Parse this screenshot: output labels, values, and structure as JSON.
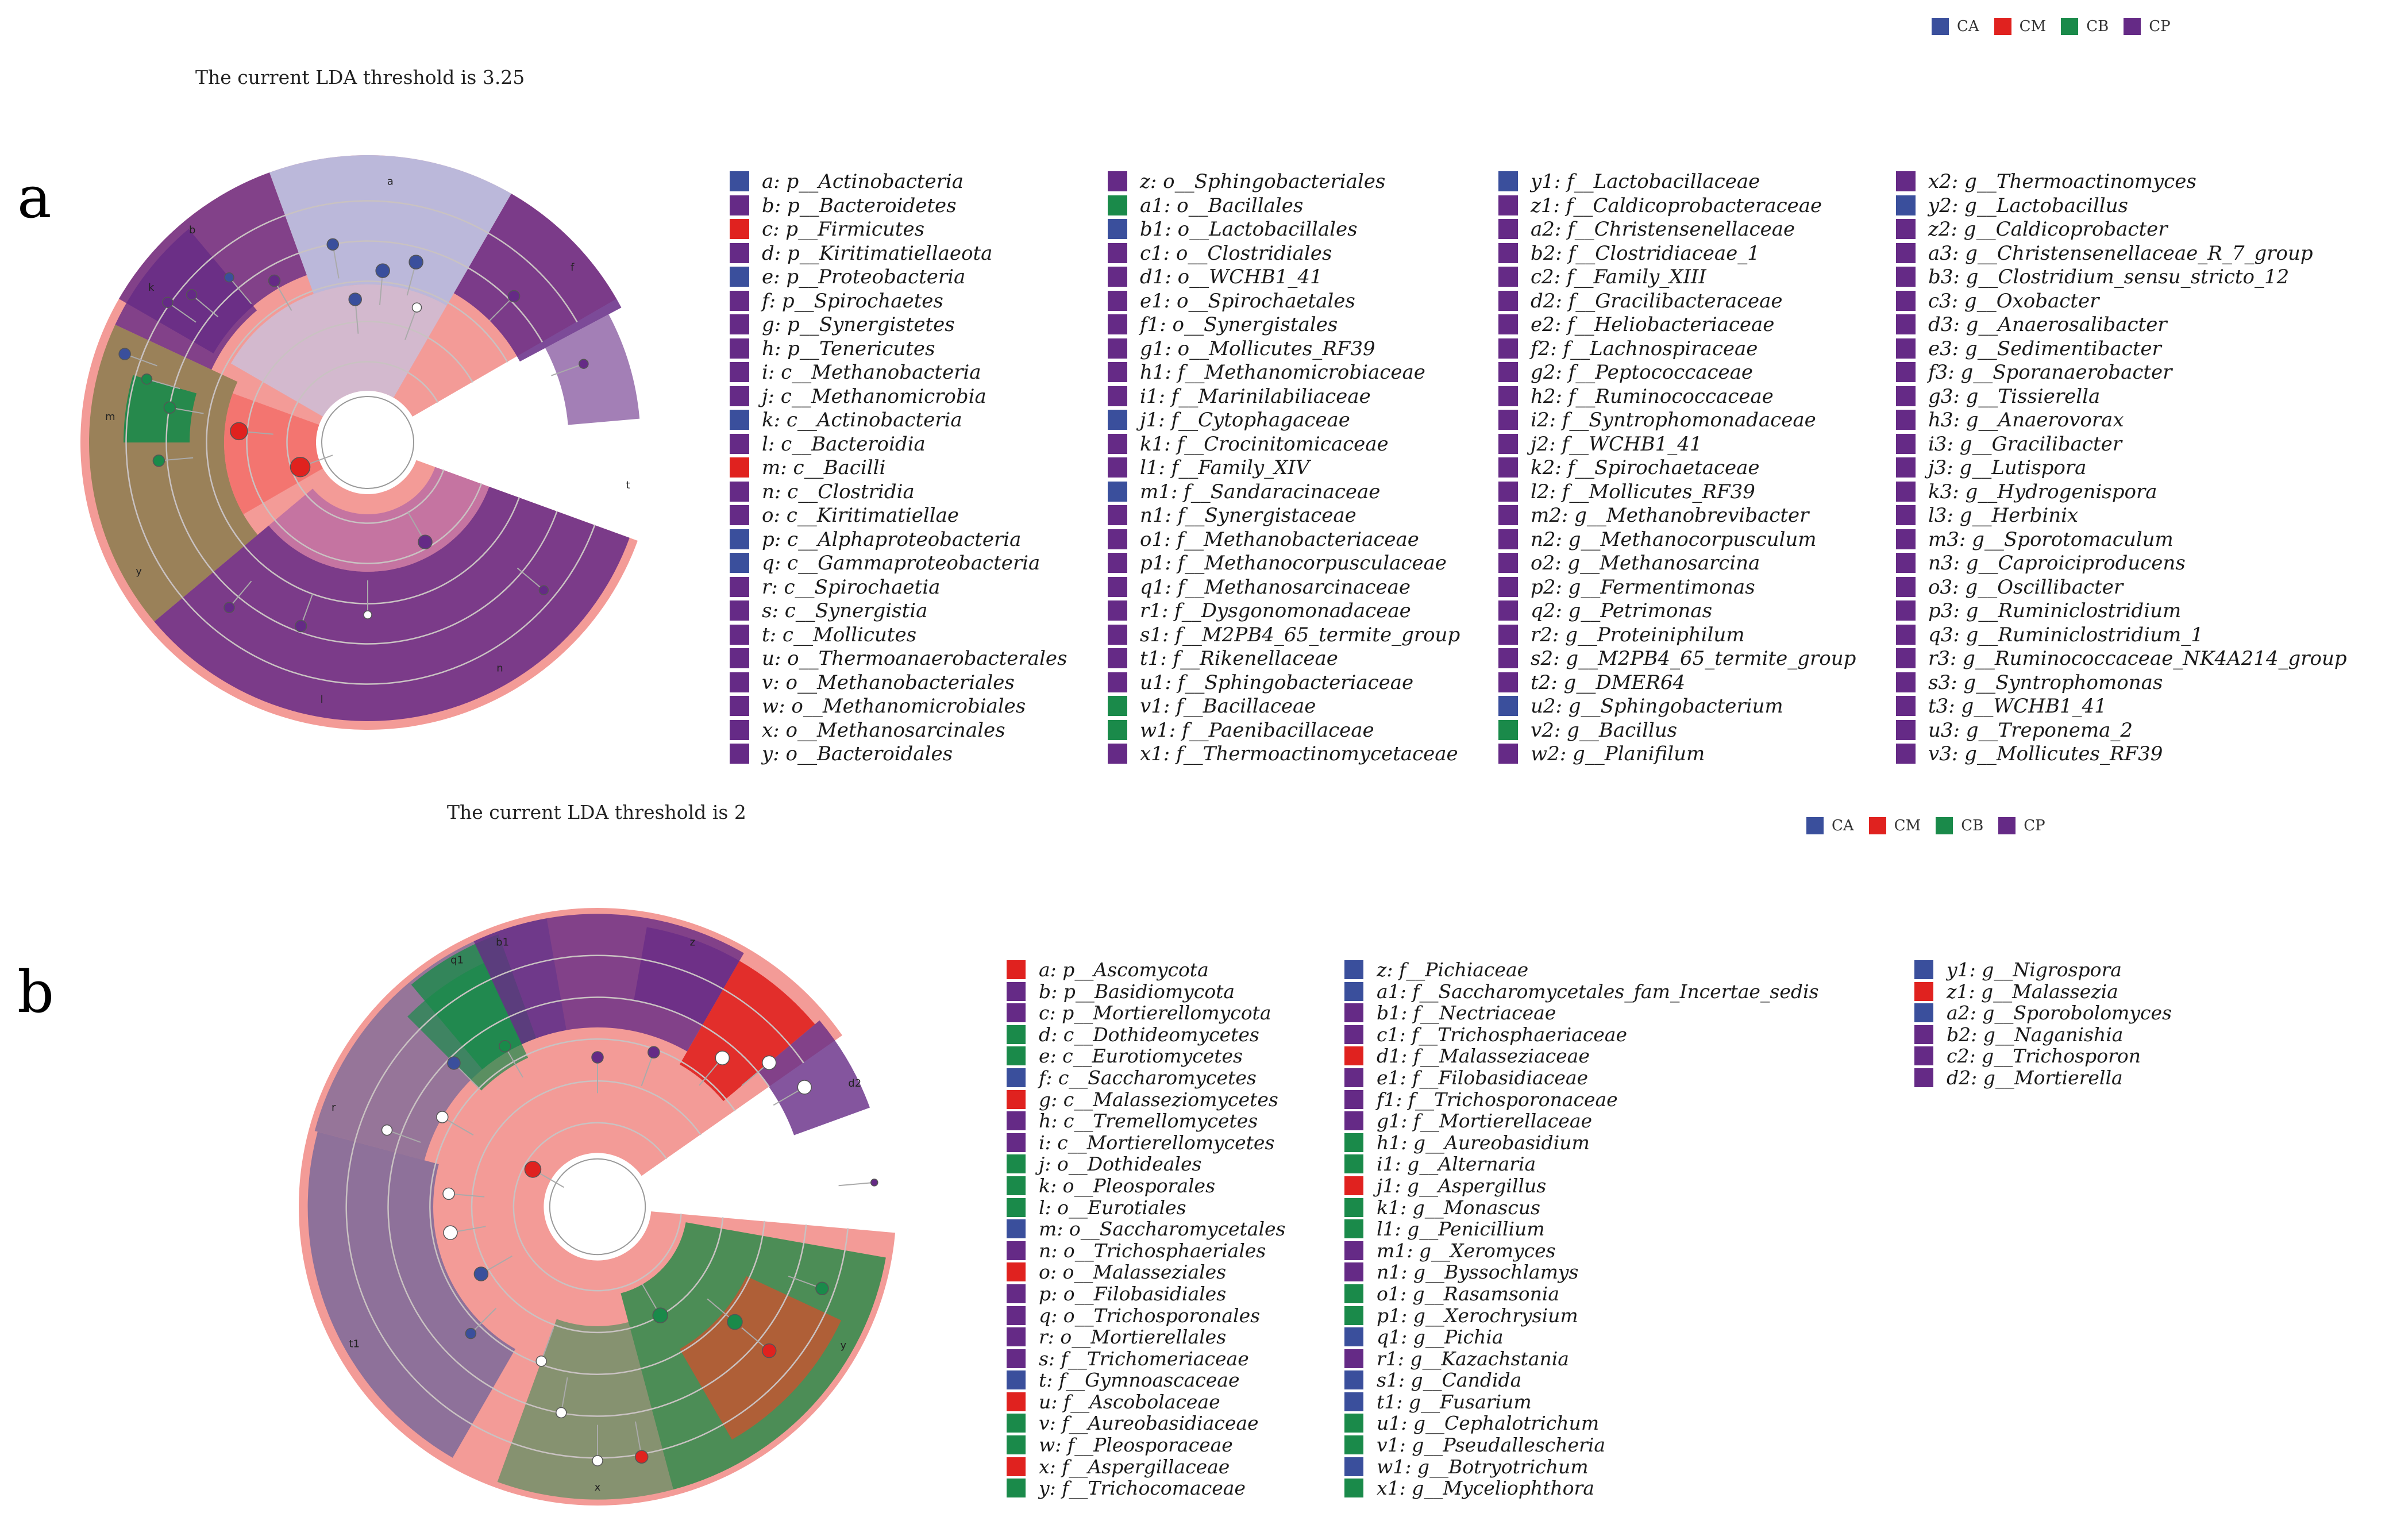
{
  "colors": {
    "CA": "#3a4f9c",
    "CM": "#e0221f",
    "CB": "#1a8a4a",
    "CP": "#652a86",
    "pink": "#f39b97",
    "light": "#b7b9dd",
    "olive": "#8a7c4e"
  },
  "panel_a": {
    "label": "a",
    "threshold_text": "The current LDA threshold is 3.25",
    "legend": [
      {
        "key": "CA",
        "label": "CA"
      },
      {
        "key": "CM",
        "label": "CM"
      },
      {
        "key": "CB",
        "label": "CB"
      },
      {
        "key": "CP",
        "label": "CP"
      }
    ],
    "columns": [
      [
        {
          "c": "CA",
          "t": "a: p__Actinobacteria"
        },
        {
          "c": "CP",
          "t": "b: p__Bacteroidetes"
        },
        {
          "c": "CM",
          "t": "c: p__Firmicutes"
        },
        {
          "c": "CP",
          "t": "d: p__Kiritimatiellaeota"
        },
        {
          "c": "CA",
          "t": "e: p__Proteobacteria"
        },
        {
          "c": "CP",
          "t": "f: p__Spirochaetes"
        },
        {
          "c": "CP",
          "t": "g: p__Synergistetes"
        },
        {
          "c": "CP",
          "t": "h: p__Tenericutes"
        },
        {
          "c": "CP",
          "t": "i: c__Methanobacteria"
        },
        {
          "c": "CP",
          "t": "j: c__Methanomicrobia"
        },
        {
          "c": "CA",
          "t": "k: c__Actinobacteria"
        },
        {
          "c": "CP",
          "t": "l: c__Bacteroidia"
        },
        {
          "c": "CM",
          "t": "m: c__Bacilli"
        },
        {
          "c": "CP",
          "t": "n: c__Clostridia"
        },
        {
          "c": "CP",
          "t": "o: c__Kiritimatiellae"
        },
        {
          "c": "CA",
          "t": "p: c__Alphaproteobacteria"
        },
        {
          "c": "CA",
          "t": "q: c__Gammaproteobacteria"
        },
        {
          "c": "CP",
          "t": "r: c__Spirochaetia"
        },
        {
          "c": "CP",
          "t": "s: c__Synergistia"
        },
        {
          "c": "CP",
          "t": "t: c__Mollicutes"
        },
        {
          "c": "CP",
          "t": "u: o__Thermoanaerobacterales"
        },
        {
          "c": "CP",
          "t": "v: o__Methanobacteriales"
        },
        {
          "c": "CP",
          "t": "w: o__Methanomicrobiales"
        },
        {
          "c": "CP",
          "t": "x: o__Methanosarcinales"
        },
        {
          "c": "CP",
          "t": "y: o__Bacteroidales"
        }
      ],
      [
        {
          "c": "CP",
          "t": "z: o__Sphingobacteriales"
        },
        {
          "c": "CB",
          "t": "a1: o__Bacillales"
        },
        {
          "c": "CA",
          "t": "b1: o__Lactobacillales"
        },
        {
          "c": "CP",
          "t": "c1: o__Clostridiales"
        },
        {
          "c": "CP",
          "t": "d1: o__WCHB1_41"
        },
        {
          "c": "CP",
          "t": "e1: o__Spirochaetales"
        },
        {
          "c": "CP",
          "t": "f1: o__Synergistales"
        },
        {
          "c": "CP",
          "t": "g1: o__Mollicutes_RF39"
        },
        {
          "c": "CP",
          "t": "h1: f__Methanomicrobiaceae"
        },
        {
          "c": "CP",
          "t": "i1: f__Marinilabiliaceae"
        },
        {
          "c": "CA",
          "t": "j1: f__Cytophagaceae"
        },
        {
          "c": "CP",
          "t": "k1: f__Crocinitomicaceae"
        },
        {
          "c": "CP",
          "t": "l1: f__Family_XIV"
        },
        {
          "c": "CA",
          "t": "m1: f__Sandaracinaceae"
        },
        {
          "c": "CP",
          "t": "n1: f__Synergistaceae"
        },
        {
          "c": "CP",
          "t": "o1: f__Methanobacteriaceae"
        },
        {
          "c": "CP",
          "t": "p1: f__Methanocorpusculaceae"
        },
        {
          "c": "CP",
          "t": "q1: f__Methanosarcinaceae"
        },
        {
          "c": "CP",
          "t": "r1: f__Dysgonomonadaceae"
        },
        {
          "c": "CP",
          "t": "s1: f__M2PB4_65_termite_group"
        },
        {
          "c": "CP",
          "t": "t1: f__Rikenellaceae"
        },
        {
          "c": "CP",
          "t": "u1: f__Sphingobacteriaceae"
        },
        {
          "c": "CB",
          "t": "v1: f__Bacillaceae"
        },
        {
          "c": "CB",
          "t": "w1: f__Paenibacillaceae"
        },
        {
          "c": "CP",
          "t": "x1: f__Thermoactinomycetaceae"
        }
      ],
      [
        {
          "c": "CA",
          "t": "y1: f__Lactobacillaceae"
        },
        {
          "c": "CP",
          "t": "z1: f__Caldicoprobacteraceae"
        },
        {
          "c": "CP",
          "t": "a2: f__Christensenellaceae"
        },
        {
          "c": "CP",
          "t": "b2: f__Clostridiaceae_1"
        },
        {
          "c": "CP",
          "t": "c2: f__Family_XIII"
        },
        {
          "c": "CP",
          "t": "d2: f__Gracilibacteraceae"
        },
        {
          "c": "CP",
          "t": "e2: f__Heliobacteriaceae"
        },
        {
          "c": "CP",
          "t": "f2: f__Lachnospiraceae"
        },
        {
          "c": "CP",
          "t": "g2: f__Peptococcaceae"
        },
        {
          "c": "CP",
          "t": "h2: f__Ruminococcaceae"
        },
        {
          "c": "CP",
          "t": "i2: f__Syntrophomonadaceae"
        },
        {
          "c": "CP",
          "t": "j2: f__WCHB1_41"
        },
        {
          "c": "CP",
          "t": "k2: f__Spirochaetaceae"
        },
        {
          "c": "CP",
          "t": "l2: f__Mollicutes_RF39"
        },
        {
          "c": "CP",
          "t": "m2: g__Methanobrevibacter"
        },
        {
          "c": "CP",
          "t": "n2: g__Methanocorpusculum"
        },
        {
          "c": "CP",
          "t": "o2: g__Methanosarcina"
        },
        {
          "c": "CP",
          "t": "p2: g__Fermentimonas"
        },
        {
          "c": "CP",
          "t": "q2: g__Petrimonas"
        },
        {
          "c": "CP",
          "t": "r2: g__Proteiniphilum"
        },
        {
          "c": "CP",
          "t": "s2: g__M2PB4_65_termite_group"
        },
        {
          "c": "CP",
          "t": "t2: g__DMER64"
        },
        {
          "c": "CA",
          "t": "u2: g__Sphingobacterium"
        },
        {
          "c": "CB",
          "t": "v2: g__Bacillus"
        },
        {
          "c": "CP",
          "t": "w2: g__Planifilum"
        }
      ],
      [
        {
          "c": "CP",
          "t": "x2: g__Thermoactinomyces"
        },
        {
          "c": "CA",
          "t": "y2: g__Lactobacillus"
        },
        {
          "c": "CP",
          "t": "z2: g__Caldicoprobacter"
        },
        {
          "c": "CP",
          "t": "a3: g__Christensenellaceae_R_7_group"
        },
        {
          "c": "CP",
          "t": "b3: g__Clostridium_sensu_stricto_12"
        },
        {
          "c": "CP",
          "t": "c3: g__Oxobacter"
        },
        {
          "c": "CP",
          "t": "d3: g__Anaerosalibacter"
        },
        {
          "c": "CP",
          "t": "e3: g__Sedimentibacter"
        },
        {
          "c": "CP",
          "t": "f3: g__Sporanaerobacter"
        },
        {
          "c": "CP",
          "t": "g3: g__Tissierella"
        },
        {
          "c": "CP",
          "t": "h3: g__Anaerovorax"
        },
        {
          "c": "CP",
          "t": "i3: g__Gracilibacter"
        },
        {
          "c": "CP",
          "t": "j3: g__Lutispora"
        },
        {
          "c": "CP",
          "t": "k3: g__Hydrogenispora"
        },
        {
          "c": "CP",
          "t": "l3: g__Herbinix"
        },
        {
          "c": "CP",
          "t": "m3: g__Sporotomaculum"
        },
        {
          "c": "CP",
          "t": "n3: g__Caproiciproducens"
        },
        {
          "c": "CP",
          "t": "o3: g__Oscillibacter"
        },
        {
          "c": "CP",
          "t": "p3: g__Ruminiclostridium"
        },
        {
          "c": "CP",
          "t": "q3: g__Ruminiclostridium_1"
        },
        {
          "c": "CP",
          "t": "r3: g__Ruminococcaceae_NK4A214_group"
        },
        {
          "c": "CP",
          "t": "s3: g__Syntrophomonas"
        },
        {
          "c": "CP",
          "t": "t3: g__WCHB1_41"
        },
        {
          "c": "CP",
          "t": "u3: g__Treponema_2"
        },
        {
          "c": "CP",
          "t": "v3: g__Mollicutes_RF39"
        }
      ]
    ]
  },
  "panel_b": {
    "label": "b",
    "threshold_text": "The current LDA threshold is 2",
    "legend": [
      {
        "key": "CA",
        "label": "CA"
      },
      {
        "key": "CM",
        "label": "CM"
      },
      {
        "key": "CB",
        "label": "CB"
      },
      {
        "key": "CP",
        "label": "CP"
      }
    ],
    "columns": [
      [
        {
          "c": "CM",
          "t": "a: p__Ascomycota"
        },
        {
          "c": "CP",
          "t": "b: p__Basidiomycota"
        },
        {
          "c": "CP",
          "t": "c: p__Mortierellomycota"
        },
        {
          "c": "CB",
          "t": "d: c__Dothideomycetes"
        },
        {
          "c": "CB",
          "t": "e: c__Eurotiomycetes"
        },
        {
          "c": "CA",
          "t": "f: c__Saccharomycetes"
        },
        {
          "c": "CM",
          "t": "g: c__Malasseziomycetes"
        },
        {
          "c": "CP",
          "t": "h: c__Tremellomycetes"
        },
        {
          "c": "CP",
          "t": "i: c__Mortierellomycetes"
        },
        {
          "c": "CB",
          "t": "j: o__Dothideales"
        },
        {
          "c": "CB",
          "t": "k: o__Pleosporales"
        },
        {
          "c": "CB",
          "t": "l: o__Eurotiales"
        },
        {
          "c": "CA",
          "t": "m: o__Saccharomycetales"
        },
        {
          "c": "CP",
          "t": "n: o__Trichosphaeriales"
        },
        {
          "c": "CM",
          "t": "o: o__Malasseziales"
        },
        {
          "c": "CP",
          "t": "p: o__Filobasidiales"
        },
        {
          "c": "CP",
          "t": "q: o__Trichosporonales"
        },
        {
          "c": "CP",
          "t": "r: o__Mortierellales"
        },
        {
          "c": "CP",
          "t": "s: f__Trichomeriaceae"
        },
        {
          "c": "CA",
          "t": "t: f__Gymnoascaceae"
        },
        {
          "c": "CM",
          "t": "u: f__Ascobolaceae"
        },
        {
          "c": "CB",
          "t": "v: f__Aureobasidiaceae"
        },
        {
          "c": "CB",
          "t": "w: f__Pleosporaceae"
        },
        {
          "c": "CM",
          "t": "x: f__Aspergillaceae"
        },
        {
          "c": "CB",
          "t": "y: f__Trichocomaceae"
        }
      ],
      [
        {
          "c": "CA",
          "t": "z: f__Pichiaceae"
        },
        {
          "c": "CA",
          "t": "a1: f__Saccharomycetales_fam_Incertae_sedis"
        },
        {
          "c": "CP",
          "t": "b1: f__Nectriaceae"
        },
        {
          "c": "CP",
          "t": "c1: f__Trichosphaeriaceae"
        },
        {
          "c": "CM",
          "t": "d1: f__Malasseziaceae"
        },
        {
          "c": "CP",
          "t": "e1: f__Filobasidiaceae"
        },
        {
          "c": "CP",
          "t": "f1: f__Trichosporonaceae"
        },
        {
          "c": "CP",
          "t": "g1: f__Mortierellaceae"
        },
        {
          "c": "CB",
          "t": "h1: g__Aureobasidium"
        },
        {
          "c": "CB",
          "t": "i1: g__Alternaria"
        },
        {
          "c": "CM",
          "t": "j1: g__Aspergillus"
        },
        {
          "c": "CB",
          "t": "k1: g__Monascus"
        },
        {
          "c": "CB",
          "t": "l1: g__Penicillium"
        },
        {
          "c": "CP",
          "t": "m1: g__Xeromyces"
        },
        {
          "c": "CP",
          "t": "n1: g__Byssochlamys"
        },
        {
          "c": "CB",
          "t": "o1: g__Rasamsonia"
        },
        {
          "c": "CB",
          "t": "p1: g__Xerochrysium"
        },
        {
          "c": "CA",
          "t": "q1: g__Pichia"
        },
        {
          "c": "CP",
          "t": "r1: g__Kazachstania"
        },
        {
          "c": "CA",
          "t": "s1: g__Candida"
        },
        {
          "c": "CA",
          "t": "t1: g__Fusarium"
        },
        {
          "c": "CB",
          "t": "u1: g__Cephalotrichum"
        },
        {
          "c": "CB",
          "t": "v1: g__Pseudallescheria"
        },
        {
          "c": "CA",
          "t": "w1: g__Botryotrichum"
        },
        {
          "c": "CB",
          "t": "x1: g__Myceliophthora"
        }
      ],
      [
        {
          "c": "CA",
          "t": "y1: g__Nigrospora"
        },
        {
          "c": "CM",
          "t": "z1: g__Malassezia"
        },
        {
          "c": "CA",
          "t": "a2: g__Sporobolomyces"
        },
        {
          "c": "CP",
          "t": "b2: g__Naganishia"
        },
        {
          "c": "CP",
          "t": "c2: g__Trichosporon"
        },
        {
          "c": "CP",
          "t": "d2: g__Mortierella"
        }
      ]
    ]
  }
}
